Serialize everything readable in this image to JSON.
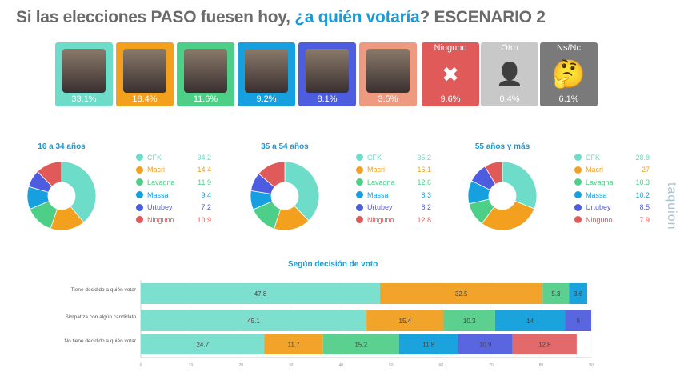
{
  "title": {
    "part1": "Si las elecciones PASO fuesen hoy, ",
    "highlight": "¿a quién votaría",
    "part2": "? ESCENARIO 2"
  },
  "cards": [
    {
      "label": "",
      "value": "33.1%",
      "color": "#6ddcc8",
      "icon": "photo-cfk"
    },
    {
      "label": "",
      "value": "18.4%",
      "color": "#f2a01e",
      "icon": "photo-macri"
    },
    {
      "label": "",
      "value": "11.6%",
      "color": "#4ecf88",
      "icon": "photo-lavagna"
    },
    {
      "label": "",
      "value": "9.2%",
      "color": "#16a0e0",
      "icon": "photo-massa"
    },
    {
      "label": "",
      "value": "8.1%",
      "color": "#4e5de0",
      "icon": "photo-urtubey"
    },
    {
      "label": "",
      "value": "3.5%",
      "color": "#ee9a80",
      "icon": "photo-candidate"
    },
    {
      "label": "Ninguno",
      "value": "9.6%",
      "color": "#e05a5a",
      "icon": "x-box-icon"
    },
    {
      "label": "Otro",
      "value": "0.4%",
      "color": "#c8c8c8",
      "icon": "unknown-person-icon"
    },
    {
      "label": "Ns/Nc",
      "value": "6.1%",
      "color": "#7a7a7a",
      "icon": "thinking-face-icon"
    }
  ],
  "watermark": "taquion",
  "chart_data": [
    {
      "type": "pie",
      "title": "16 a 34 años",
      "donut": true,
      "categories": [
        "CFK",
        "Macri",
        "Lavagna",
        "Massa",
        "Urtubey",
        "Ninguno"
      ],
      "values": [
        34.2,
        14.4,
        11.9,
        9.4,
        7.2,
        10.9
      ],
      "colors": [
        "#6ddcc8",
        "#f2a01e",
        "#4ecf88",
        "#16a0e0",
        "#4e5de0",
        "#e05a5a"
      ]
    },
    {
      "type": "pie",
      "title": "35 a 54 años",
      "donut": true,
      "categories": [
        "CFK",
        "Macri",
        "Lavagna",
        "Massa",
        "Urtubey",
        "Ninguno"
      ],
      "values": [
        35.2,
        16.1,
        12.6,
        8.3,
        8.2,
        12.8
      ],
      "colors": [
        "#6ddcc8",
        "#f2a01e",
        "#4ecf88",
        "#16a0e0",
        "#4e5de0",
        "#e05a5a"
      ]
    },
    {
      "type": "pie",
      "title": "55 años y más",
      "donut": true,
      "categories": [
        "CFK",
        "Macri",
        "Lavagna",
        "Massa",
        "Urtubey",
        "Ninguno"
      ],
      "values": [
        28.8,
        27,
        10.3,
        10.2,
        8.5,
        7.9
      ],
      "colors": [
        "#6ddcc8",
        "#f2a01e",
        "#4ecf88",
        "#16a0e0",
        "#4e5de0",
        "#e05a5a"
      ]
    },
    {
      "type": "bar",
      "orientation": "horizontal",
      "stacked": true,
      "title": "Según decisión de voto",
      "categories": [
        "Tiene decidido a quién votar",
        "Simpatiza con algún candidato",
        "No tiene decidido a quién votar"
      ],
      "series": [
        {
          "values": [
            47.8,
            45.1,
            24.7
          ],
          "color": "#7de0cf"
        },
        {
          "values": [
            32.5,
            15.4,
            11.7
          ],
          "color": "#f2a42a"
        },
        {
          "values": [
            5.3,
            10.3,
            15.2
          ],
          "color": "#5bd08f"
        },
        {
          "values": [
            3.6,
            14,
            11.8
          ],
          "color": "#1aa3dc"
        },
        {
          "values": [
            null,
            8,
            10.9
          ],
          "color": "#5a66e0"
        },
        {
          "values": [
            null,
            null,
            12.8
          ],
          "color": "#e36a6a"
        }
      ],
      "xlim": [
        0,
        90
      ],
      "xticks": [
        0,
        10,
        20,
        30,
        40,
        50,
        60,
        70,
        80,
        90
      ],
      "grid": true
    }
  ]
}
